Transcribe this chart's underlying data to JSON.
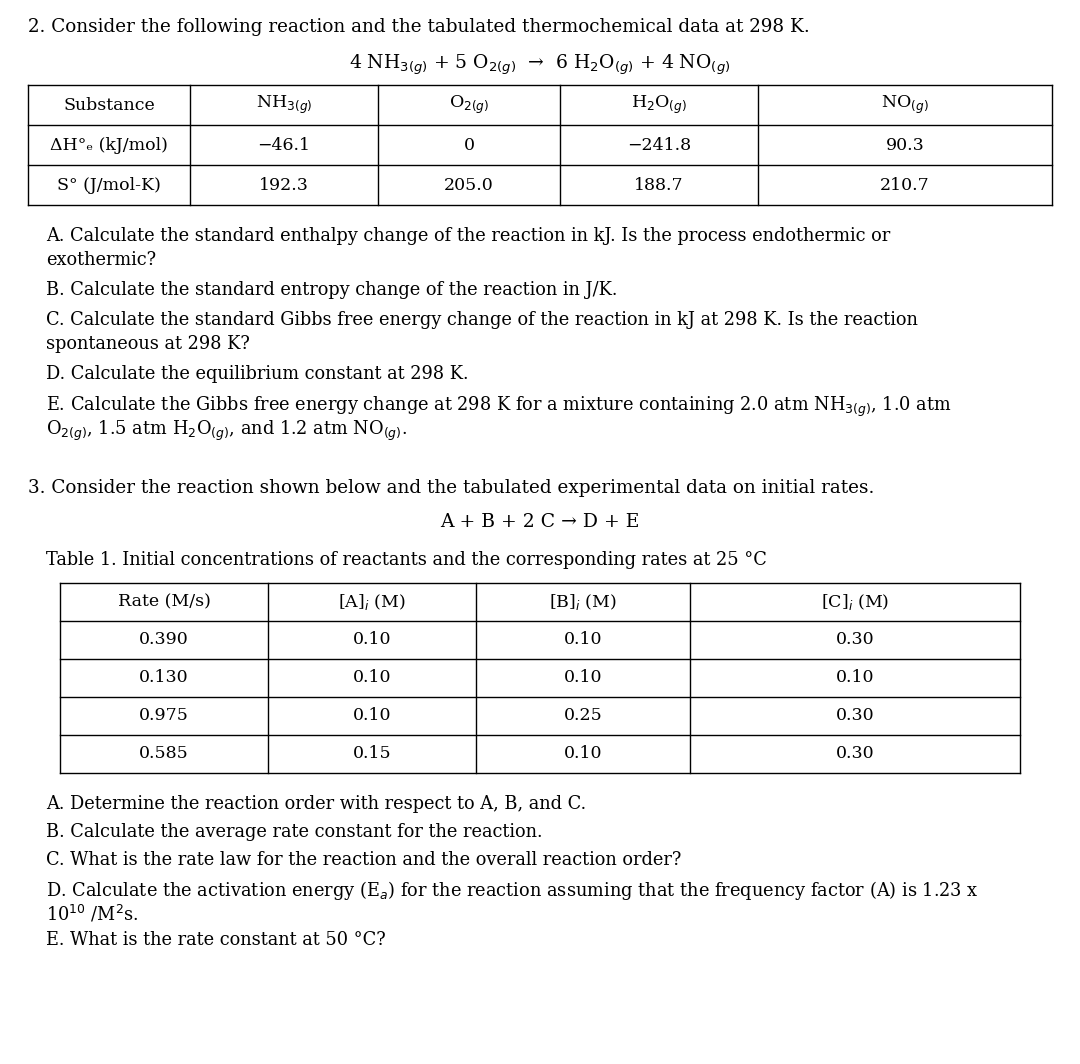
{
  "bg_color": "#ffffff",
  "section2_title": "2. Consider the following reaction and the tabulated thermochemical data at 298 K.",
  "reaction1": "4 NH$_{3(g)}$ + 5 O$_{2(g)}$  →  6 H$_2$O$_{(g)}$ + 4 NO$_{(g)}$",
  "table1_cols": [
    "Substance",
    "NH$_{3(g)}$",
    "O$_{2(g)}$",
    "H$_2$O$_{(g)}$",
    "NO$_{(g)}$"
  ],
  "table1_row1": [
    "ΔH°ₑ (kJ/mol)",
    "−46.1",
    "0",
    "−241.8",
    "90.3"
  ],
  "table1_row2": [
    "S° (J/mol-K)",
    "192.3",
    "205.0",
    "188.7",
    "210.7"
  ],
  "section3_title": "3. Consider the reaction shown below and the tabulated experimental data on initial rates.",
  "reaction2": "A + B + 2 C → D + E",
  "table2_caption": "Table 1. Initial concentrations of reactants and the corresponding rates at 25 °C",
  "table2_cols": [
    "Rate (M/s)",
    "[A]$_i$ (M)",
    "[B]$_i$ (M)",
    "[C]$_i$ (M)"
  ],
  "table2_data": [
    [
      "0.390",
      "0.10",
      "0.10",
      "0.30"
    ],
    [
      "0.130",
      "0.10",
      "0.10",
      "0.10"
    ],
    [
      "0.975",
      "0.10",
      "0.25",
      "0.30"
    ],
    [
      "0.585",
      "0.15",
      "0.10",
      "0.30"
    ]
  ]
}
